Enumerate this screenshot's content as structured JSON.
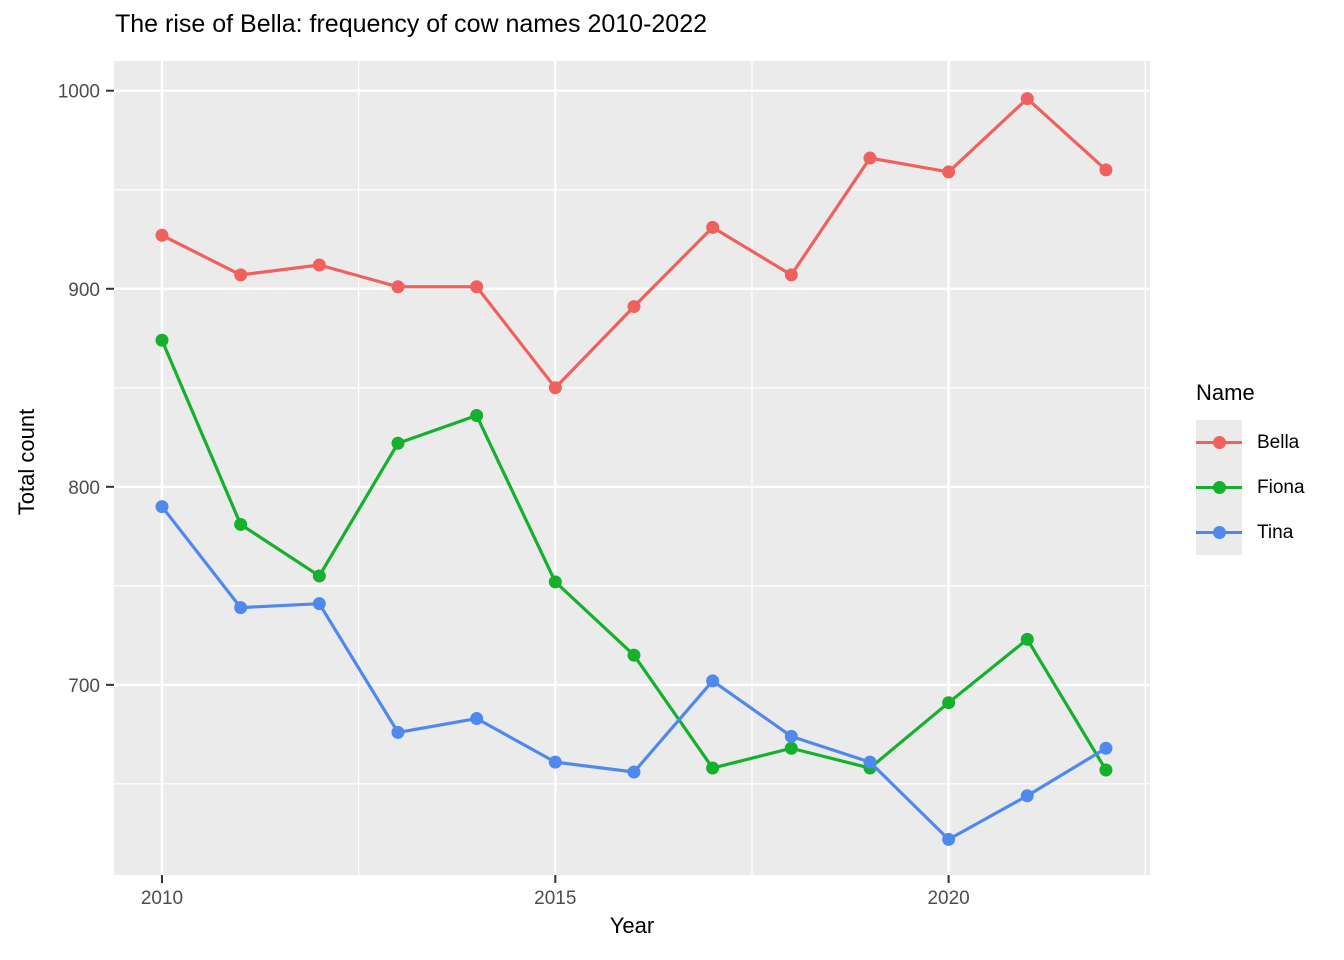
{
  "title": "The rise of Bella: frequency of cow names 2010-2022",
  "chart_data": {
    "type": "line",
    "title": "The rise of Bella: frequency of cow names 2010-2022",
    "xlabel": "Year",
    "ylabel": "Total count",
    "x": [
      2010,
      2011,
      2012,
      2013,
      2014,
      2015,
      2016,
      2017,
      2018,
      2019,
      2020,
      2021,
      2022
    ],
    "series": [
      {
        "name": "Bella",
        "color": "#F0615D",
        "values": [
          927,
          907,
          912,
          901,
          901,
          850,
          891,
          931,
          907,
          966,
          959,
          996,
          960
        ]
      },
      {
        "name": "Fiona",
        "color": "#15B02C",
        "values": [
          874,
          781,
          755,
          822,
          836,
          752,
          715,
          658,
          668,
          658,
          691,
          723,
          657
        ]
      },
      {
        "name": "Tina",
        "color": "#5089EE",
        "values": [
          790,
          739,
          741,
          676,
          683,
          661,
          656,
          702,
          674,
          661,
          622,
          644,
          668
        ]
      }
    ],
    "x_ticks": [
      2010,
      2015,
      2020
    ],
    "y_ticks": [
      700,
      800,
      900,
      1000
    ],
    "x_minor_breaks": [
      2012.5,
      2017.5,
      2022.5
    ],
    "y_minor_breaks": [
      650,
      750,
      850,
      950
    ],
    "xlim": [
      2009.39,
      2022.56
    ],
    "ylim": [
      604,
      1015
    ],
    "grid": true,
    "legend": {
      "title": "Name",
      "position": "right"
    },
    "colors": {
      "panel_bg": "#EBEBEB",
      "grid": "#FFFFFF",
      "axis_text": "#4D4D4D",
      "tick_mark": "#333333",
      "title_text": "#000000"
    }
  }
}
